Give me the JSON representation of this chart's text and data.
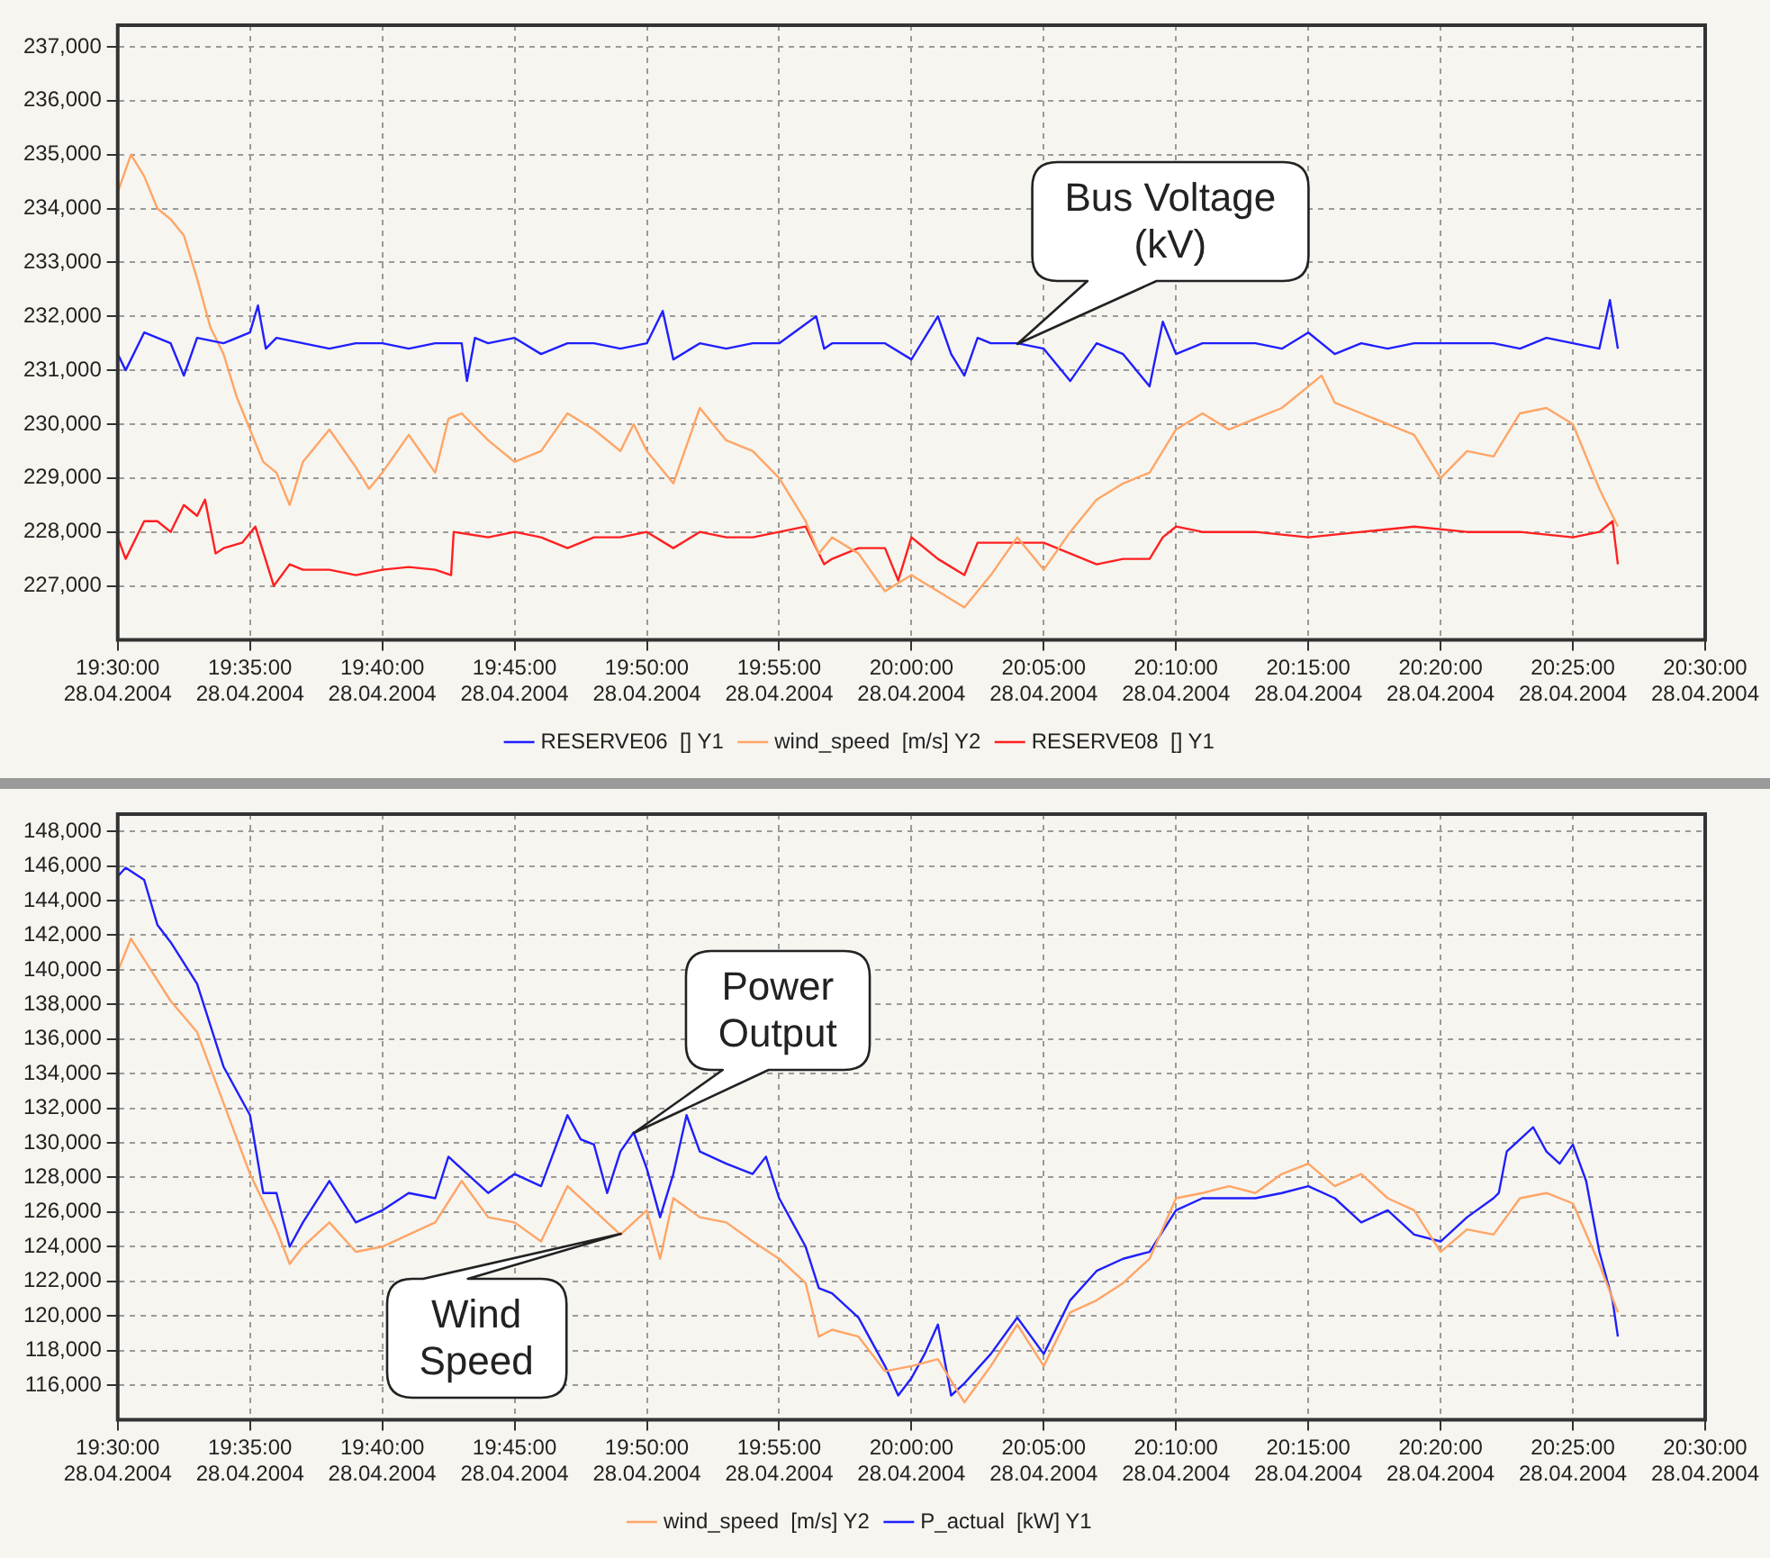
{
  "chart_data": [
    {
      "type": "line",
      "grid": true,
      "legend": "bottom",
      "marker": "none",
      "line_style": "solid",
      "xlim": [
        "2004-04-28T19:30",
        "2004-04-28T20:30"
      ],
      "xticks": [
        {
          "value": "2004-04-28T19:30",
          "label": "19:30:00\n28.04.2004"
        },
        {
          "value": "2004-04-28T19:35",
          "label": "19:35:00\n28.04.2004"
        },
        {
          "value": "2004-04-28T19:40",
          "label": "19:40:00\n28.04.2004"
        },
        {
          "value": "2004-04-28T19:45",
          "label": "19:45:00\n28.04.2004"
        },
        {
          "value": "2004-04-28T19:50",
          "label": "19:50:00\n28.04.2004"
        },
        {
          "value": "2004-04-28T19:55",
          "label": "19:55:00\n28.04.2004"
        },
        {
          "value": "2004-04-28T20:00",
          "label": "20:00:00\n28.04.2004"
        },
        {
          "value": "2004-04-28T20:05",
          "label": "20:05:00\n28.04.2004"
        },
        {
          "value": "2004-04-28T20:10",
          "label": "20:10:00\n28.04.2004"
        },
        {
          "value": "2004-04-28T20:15",
          "label": "20:15:00\n28.04.2004"
        },
        {
          "value": "2004-04-28T20:20",
          "label": "20:20:00\n28.04.2004"
        },
        {
          "value": "2004-04-28T20:25",
          "label": "20:25:00\n28.04.2004"
        },
        {
          "value": "2004-04-28T20:30",
          "label": "20:30:00\n28.04.2004"
        }
      ],
      "ylim": [
        226000,
        237400
      ],
      "yticks": [
        {
          "value": 227000,
          "label": "227,000"
        },
        {
          "value": 228000,
          "label": "228,000"
        },
        {
          "value": 229000,
          "label": "229,000"
        },
        {
          "value": 230000,
          "label": "230,000"
        },
        {
          "value": 231000,
          "label": "231,000"
        },
        {
          "value": 232000,
          "label": "232,000"
        },
        {
          "value": 233000,
          "label": "233,000"
        },
        {
          "value": 234000,
          "label": "234,000"
        },
        {
          "value": 235000,
          "label": "235,000"
        },
        {
          "value": 236000,
          "label": "236,000"
        },
        {
          "value": 237000,
          "label": "237,000"
        }
      ],
      "annotations": [
        {
          "text": "Bus Voltage\n(kV)",
          "x": "2004-04-28T20:04:00",
          "y": 231500
        }
      ],
      "series": [
        {
          "name": "RESERVE06  [] Y1",
          "color": "#1f1fff",
          "x": [
            "2004-04-28T19:30:00",
            "2004-04-28T19:30:18",
            "2004-04-28T19:31:00",
            "2004-04-28T19:32:00",
            "2004-04-28T19:32:30",
            "2004-04-28T19:33:00",
            "2004-04-28T19:34:00",
            "2004-04-28T19:35:00",
            "2004-04-28T19:35:18",
            "2004-04-28T19:35:36",
            "2004-04-28T19:36:00",
            "2004-04-28T19:37:00",
            "2004-04-28T19:38:00",
            "2004-04-28T19:39:00",
            "2004-04-28T19:40:00",
            "2004-04-28T19:41:00",
            "2004-04-28T19:42:00",
            "2004-04-28T19:43:00",
            "2004-04-28T19:43:12",
            "2004-04-28T19:43:30",
            "2004-04-28T19:44:00",
            "2004-04-28T19:45:00",
            "2004-04-28T19:46:00",
            "2004-04-28T19:47:00",
            "2004-04-28T19:48:00",
            "2004-04-28T19:49:00",
            "2004-04-28T19:50:00",
            "2004-04-28T19:50:36",
            "2004-04-28T19:51:00",
            "2004-04-28T19:52:00",
            "2004-04-28T19:53:00",
            "2004-04-28T19:54:00",
            "2004-04-28T19:55:00",
            "2004-04-28T19:56:24",
            "2004-04-28T19:56:42",
            "2004-04-28T19:57:00",
            "2004-04-28T19:58:00",
            "2004-04-28T19:59:00",
            "2004-04-28T20:00:00",
            "2004-04-28T20:01:00",
            "2004-04-28T20:01:30",
            "2004-04-28T20:02:00",
            "2004-04-28T20:02:30",
            "2004-04-28T20:03:00",
            "2004-04-28T20:04:00",
            "2004-04-28T20:05:00",
            "2004-04-28T20:06:00",
            "2004-04-28T20:07:00",
            "2004-04-28T20:08:00",
            "2004-04-28T20:09:00",
            "2004-04-28T20:09:30",
            "2004-04-28T20:10:00",
            "2004-04-28T20:11:00",
            "2004-04-28T20:12:00",
            "2004-04-28T20:13:00",
            "2004-04-28T20:14:00",
            "2004-04-28T20:15:00",
            "2004-04-28T20:16:00",
            "2004-04-28T20:17:00",
            "2004-04-28T20:18:00",
            "2004-04-28T20:19:00",
            "2004-04-28T20:20:00",
            "2004-04-28T20:21:00",
            "2004-04-28T20:22:00",
            "2004-04-28T20:23:00",
            "2004-04-28T20:24:00",
            "2004-04-28T20:25:00",
            "2004-04-28T20:26:00",
            "2004-04-28T20:26:24",
            "2004-04-28T20:26:42"
          ],
          "values": [
            231300,
            231000,
            231700,
            231500,
            230900,
            231600,
            231500,
            231700,
            232200,
            231400,
            231600,
            231500,
            231400,
            231500,
            231500,
            231400,
            231500,
            231500,
            230800,
            231600,
            231500,
            231600,
            231300,
            231500,
            231500,
            231400,
            231500,
            232100,
            231200,
            231500,
            231400,
            231500,
            231500,
            232000,
            231400,
            231500,
            231500,
            231500,
            231200,
            232000,
            231300,
            230900,
            231600,
            231500,
            231500,
            231400,
            230800,
            231500,
            231300,
            230700,
            231900,
            231300,
            231500,
            231500,
            231500,
            231400,
            231700,
            231300,
            231500,
            231400,
            231500,
            231500,
            231500,
            231500,
            231400,
            231600,
            231500,
            231400,
            232300,
            231400
          ]
        },
        {
          "name": "wind_speed  [m/s] Y2",
          "color": "#ffa566",
          "x": [
            "2004-04-28T19:30:00",
            "2004-04-28T19:30:30",
            "2004-04-28T19:31:00",
            "2004-04-28T19:31:30",
            "2004-04-28T19:32:00",
            "2004-04-28T19:32:30",
            "2004-04-28T19:33:00",
            "2004-04-28T19:33:30",
            "2004-04-28T19:34:00",
            "2004-04-28T19:34:30",
            "2004-04-28T19:35:00",
            "2004-04-28T19:35:30",
            "2004-04-28T19:36:00",
            "2004-04-28T19:36:30",
            "2004-04-28T19:37:00",
            "2004-04-28T19:38:00",
            "2004-04-28T19:39:00",
            "2004-04-28T19:39:30",
            "2004-04-28T19:40:00",
            "2004-04-28T19:41:00",
            "2004-04-28T19:42:00",
            "2004-04-28T19:42:30",
            "2004-04-28T19:43:00",
            "2004-04-28T19:44:00",
            "2004-04-28T19:45:00",
            "2004-04-28T19:46:00",
            "2004-04-28T19:47:00",
            "2004-04-28T19:48:00",
            "2004-04-28T19:49:00",
            "2004-04-28T19:49:30",
            "2004-04-28T19:50:00",
            "2004-04-28T19:51:00",
            "2004-04-28T19:52:00",
            "2004-04-28T19:53:00",
            "2004-04-28T19:54:00",
            "2004-04-28T19:55:00",
            "2004-04-28T19:56:00",
            "2004-04-28T19:56:30",
            "2004-04-28T19:57:00",
            "2004-04-28T19:58:00",
            "2004-04-28T19:59:00",
            "2004-04-28T20:00:00",
            "2004-04-28T20:01:00",
            "2004-04-28T20:02:00",
            "2004-04-28T20:03:00",
            "2004-04-28T20:04:00",
            "2004-04-28T20:05:00",
            "2004-04-28T20:06:00",
            "2004-04-28T20:07:00",
            "2004-04-28T20:08:00",
            "2004-04-28T20:09:00",
            "2004-04-28T20:10:00",
            "2004-04-28T20:11:00",
            "2004-04-28T20:12:00",
            "2004-04-28T20:13:00",
            "2004-04-28T20:14:00",
            "2004-04-28T20:15:00",
            "2004-04-28T20:15:30",
            "2004-04-28T20:16:00",
            "2004-04-28T20:17:00",
            "2004-04-28T20:18:00",
            "2004-04-28T20:19:00",
            "2004-04-28T20:20:00",
            "2004-04-28T20:21:00",
            "2004-04-28T20:22:00",
            "2004-04-28T20:23:00",
            "2004-04-28T20:24:00",
            "2004-04-28T20:25:00",
            "2004-04-28T20:26:00",
            "2004-04-28T20:26:42"
          ],
          "values": [
            234300,
            235000,
            234600,
            234000,
            233800,
            233500,
            232700,
            231800,
            231300,
            230500,
            229900,
            229300,
            229100,
            228500,
            229300,
            229900,
            229200,
            228800,
            229100,
            229800,
            229100,
            230100,
            230200,
            229700,
            229300,
            229500,
            230200,
            229900,
            229500,
            230000,
            229500,
            228900,
            230300,
            229700,
            229500,
            229000,
            228200,
            227600,
            227900,
            227600,
            226900,
            227200,
            226900,
            226600,
            227200,
            227900,
            227300,
            228000,
            228600,
            228900,
            229100,
            229900,
            230200,
            229900,
            230100,
            230300,
            230700,
            230900,
            230400,
            230200,
            230000,
            229800,
            229000,
            229500,
            229400,
            230200,
            230300,
            230000,
            228800,
            228100
          ]
        },
        {
          "name": "RESERVE08  [] Y1",
          "color": "#ff2020",
          "x": [
            "2004-04-28T19:30:00",
            "2004-04-28T19:30:18",
            "2004-04-28T19:31:00",
            "2004-04-28T19:31:30",
            "2004-04-28T19:32:00",
            "2004-04-28T19:32:30",
            "2004-04-28T19:33:00",
            "2004-04-28T19:33:18",
            "2004-04-28T19:33:42",
            "2004-04-28T19:34:00",
            "2004-04-28T19:34:42",
            "2004-04-28T19:35:12",
            "2004-04-28T19:35:54",
            "2004-04-28T19:36:30",
            "2004-04-28T19:37:00",
            "2004-04-28T19:38:00",
            "2004-04-28T19:39:00",
            "2004-04-28T19:40:00",
            "2004-04-28T19:41:00",
            "2004-04-28T19:42:00",
            "2004-04-28T19:42:36",
            "2004-04-28T19:42:42",
            "2004-04-28T19:44:00",
            "2004-04-28T19:45:00",
            "2004-04-28T19:46:00",
            "2004-04-28T19:47:00",
            "2004-04-28T19:48:00",
            "2004-04-28T19:49:00",
            "2004-04-28T19:50:00",
            "2004-04-28T19:51:00",
            "2004-04-28T19:52:00",
            "2004-04-28T19:53:00",
            "2004-04-28T19:54:00",
            "2004-04-28T19:55:00",
            "2004-04-28T19:56:00",
            "2004-04-28T19:56:42",
            "2004-04-28T19:57:00",
            "2004-04-28T19:58:00",
            "2004-04-28T19:59:00",
            "2004-04-28T19:59:30",
            "2004-04-28T20:00:00",
            "2004-04-28T20:01:00",
            "2004-04-28T20:02:00",
            "2004-04-28T20:02:30",
            "2004-04-28T20:03:00",
            "2004-04-28T20:04:00",
            "2004-04-28T20:05:00",
            "2004-04-28T20:06:00",
            "2004-04-28T20:07:00",
            "2004-04-28T20:08:00",
            "2004-04-28T20:09:00",
            "2004-04-28T20:09:30",
            "2004-04-28T20:10:00",
            "2004-04-28T20:11:00",
            "2004-04-28T20:13:00",
            "2004-04-28T20:15:00",
            "2004-04-28T20:17:00",
            "2004-04-28T20:19:00",
            "2004-04-28T20:21:00",
            "2004-04-28T20:23:00",
            "2004-04-28T20:25:00",
            "2004-04-28T20:26:00",
            "2004-04-28T20:26:30",
            "2004-04-28T20:26:42"
          ],
          "values": [
            227900,
            227500,
            228200,
            228200,
            228000,
            228500,
            228300,
            228600,
            227600,
            227700,
            227800,
            228100,
            227000,
            227400,
            227300,
            227300,
            227200,
            227300,
            227350,
            227300,
            227200,
            228000,
            227900,
            228000,
            227900,
            227700,
            227900,
            227900,
            228000,
            227700,
            228000,
            227900,
            227900,
            228000,
            228100,
            227400,
            227500,
            227700,
            227700,
            227100,
            227900,
            227500,
            227200,
            227800,
            227800,
            227800,
            227800,
            227600,
            227400,
            227500,
            227500,
            227900,
            228100,
            228000,
            228000,
            227900,
            228000,
            228100,
            228000,
            228000,
            227900,
            228000,
            228200,
            227400
          ]
        }
      ]
    },
    {
      "type": "line",
      "grid": true,
      "legend": "bottom",
      "marker": "none",
      "line_style": "solid",
      "xlim": [
        "2004-04-28T19:30",
        "2004-04-28T20:30"
      ],
      "xticks": [
        {
          "value": "2004-04-28T19:30",
          "label": "19:30:00\n28.04.2004"
        },
        {
          "value": "2004-04-28T19:35",
          "label": "19:35:00\n28.04.2004"
        },
        {
          "value": "2004-04-28T19:40",
          "label": "19:40:00\n28.04.2004"
        },
        {
          "value": "2004-04-28T19:45",
          "label": "19:45:00\n28.04.2004"
        },
        {
          "value": "2004-04-28T19:50",
          "label": "19:50:00\n28.04.2004"
        },
        {
          "value": "2004-04-28T19:55",
          "label": "19:55:00\n28.04.2004"
        },
        {
          "value": "2004-04-28T20:00",
          "label": "20:00:00\n28.04.2004"
        },
        {
          "value": "2004-04-28T20:05",
          "label": "20:05:00\n28.04.2004"
        },
        {
          "value": "2004-04-28T20:10",
          "label": "20:10:00\n28.04.2004"
        },
        {
          "value": "2004-04-28T20:15",
          "label": "20:15:00\n28.04.2004"
        },
        {
          "value": "2004-04-28T20:20",
          "label": "20:20:00\n28.04.2004"
        },
        {
          "value": "2004-04-28T20:25",
          "label": "20:25:00\n28.04.2004"
        },
        {
          "value": "2004-04-28T20:30",
          "label": "20:30:00\n28.04.2004"
        }
      ],
      "ylim": [
        114000,
        149000
      ],
      "yticks": [
        {
          "value": 116000,
          "label": "116,000"
        },
        {
          "value": 118000,
          "label": "118,000"
        },
        {
          "value": 120000,
          "label": "120,000"
        },
        {
          "value": 122000,
          "label": "122,000"
        },
        {
          "value": 124000,
          "label": "124,000"
        },
        {
          "value": 126000,
          "label": "126,000"
        },
        {
          "value": 128000,
          "label": "128,000"
        },
        {
          "value": 130000,
          "label": "130,000"
        },
        {
          "value": 132000,
          "label": "132,000"
        },
        {
          "value": 134000,
          "label": "134,000"
        },
        {
          "value": 136000,
          "label": "136,000"
        },
        {
          "value": 138000,
          "label": "138,000"
        },
        {
          "value": 140000,
          "label": "140,000"
        },
        {
          "value": 142000,
          "label": "142,000"
        },
        {
          "value": 144000,
          "label": "144,000"
        },
        {
          "value": 146000,
          "label": "146,000"
        },
        {
          "value": 148000,
          "label": "148,000"
        }
      ],
      "annotations": [
        {
          "text": "Power\nOutput",
          "x": "2004-04-28T19:49:30",
          "y": 130600
        },
        {
          "text": "Wind\nSpeed",
          "x": "2004-04-28T19:49:00",
          "y": 124700
        }
      ],
      "series": [
        {
          "name": "wind_speed  [m/s] Y2",
          "color": "#ffa566",
          "x": [
            "2004-04-28T19:30:00",
            "2004-04-28T19:30:30",
            "2004-04-28T19:31:00",
            "2004-04-28T19:32:00",
            "2004-04-28T19:33:00",
            "2004-04-28T19:34:00",
            "2004-04-28T19:35:00",
            "2004-04-28T19:36:00",
            "2004-04-28T19:36:30",
            "2004-04-28T19:37:00",
            "2004-04-28T19:38:00",
            "2004-04-28T19:39:00",
            "2004-04-28T19:40:00",
            "2004-04-28T19:41:00",
            "2004-04-28T19:42:00",
            "2004-04-28T19:43:00",
            "2004-04-28T19:44:00",
            "2004-04-28T19:45:00",
            "2004-04-28T19:46:00",
            "2004-04-28T19:47:00",
            "2004-04-28T19:48:00",
            "2004-04-28T19:49:00",
            "2004-04-28T19:50:00",
            "2004-04-28T19:50:30",
            "2004-04-28T19:51:00",
            "2004-04-28T19:52:00",
            "2004-04-28T19:53:00",
            "2004-04-28T19:54:00",
            "2004-04-28T19:55:00",
            "2004-04-28T19:56:00",
            "2004-04-28T19:56:30",
            "2004-04-28T19:57:00",
            "2004-04-28T19:58:00",
            "2004-04-28T19:59:00",
            "2004-04-28T20:00:00",
            "2004-04-28T20:01:00",
            "2004-04-28T20:02:00",
            "2004-04-28T20:03:00",
            "2004-04-28T20:04:00",
            "2004-04-28T20:05:00",
            "2004-04-28T20:06:00",
            "2004-04-28T20:07:00",
            "2004-04-28T20:08:00",
            "2004-04-28T20:09:00",
            "2004-04-28T20:10:00",
            "2004-04-28T20:11:00",
            "2004-04-28T20:12:00",
            "2004-04-28T20:13:00",
            "2004-04-28T20:14:00",
            "2004-04-28T20:15:00",
            "2004-04-28T20:16:00",
            "2004-04-28T20:17:00",
            "2004-04-28T20:18:00",
            "2004-04-28T20:19:00",
            "2004-04-28T20:20:00",
            "2004-04-28T20:21:00",
            "2004-04-28T20:22:00",
            "2004-04-28T20:23:00",
            "2004-04-28T20:24:00",
            "2004-04-28T20:25:00",
            "2004-04-28T20:26:00",
            "2004-04-28T20:26:42"
          ],
          "values": [
            139900,
            141800,
            140600,
            138200,
            136400,
            132300,
            128200,
            125000,
            123000,
            124000,
            125400,
            123700,
            124000,
            124700,
            125400,
            127800,
            125700,
            125400,
            124300,
            127500,
            126100,
            124700,
            126100,
            123300,
            126800,
            125700,
            125400,
            124300,
            123300,
            121900,
            118800,
            119200,
            118800,
            116800,
            117100,
            117500,
            115000,
            117100,
            119500,
            117100,
            120200,
            120900,
            121900,
            123300,
            126800,
            127100,
            127500,
            127100,
            128200,
            128800,
            127500,
            128200,
            126800,
            126100,
            123700,
            125000,
            124700,
            126800,
            127100,
            126500,
            123000,
            120200
          ]
        },
        {
          "name": "P_actual  [kW] Y1",
          "color": "#1f1fff",
          "x": [
            "2004-04-28T19:30:00",
            "2004-04-28T19:30:18",
            "2004-04-28T19:31:00",
            "2004-04-28T19:31:30",
            "2004-04-28T19:32:00",
            "2004-04-28T19:33:00",
            "2004-04-28T19:34:00",
            "2004-04-28T19:35:00",
            "2004-04-28T19:35:30",
            "2004-04-28T19:36:00",
            "2004-04-28T19:36:30",
            "2004-04-28T19:37:00",
            "2004-04-28T19:38:00",
            "2004-04-28T19:39:00",
            "2004-04-28T19:40:00",
            "2004-04-28T19:41:00",
            "2004-04-28T19:42:00",
            "2004-04-28T19:42:30",
            "2004-04-28T19:43:00",
            "2004-04-28T19:44:00",
            "2004-04-28T19:45:00",
            "2004-04-28T19:46:00",
            "2004-04-28T19:47:00",
            "2004-04-28T19:47:30",
            "2004-04-28T19:48:00",
            "2004-04-28T19:48:30",
            "2004-04-28T19:49:00",
            "2004-04-28T19:49:30",
            "2004-04-28T19:50:00",
            "2004-04-28T19:50:30",
            "2004-04-28T19:51:00",
            "2004-04-28T19:51:30",
            "2004-04-28T19:52:00",
            "2004-04-28T19:53:00",
            "2004-04-28T19:54:00",
            "2004-04-28T19:54:30",
            "2004-04-28T19:55:00",
            "2004-04-28T19:55:30",
            "2004-04-28T19:56:00",
            "2004-04-28T19:56:30",
            "2004-04-28T19:57:00",
            "2004-04-28T19:58:00",
            "2004-04-28T19:59:00",
            "2004-04-28T19:59:30",
            "2004-04-28T20:00:00",
            "2004-04-28T20:00:30",
            "2004-04-28T20:01:00",
            "2004-04-28T20:01:30",
            "2004-04-28T20:02:00",
            "2004-04-28T20:03:00",
            "2004-04-28T20:04:00",
            "2004-04-28T20:05:00",
            "2004-04-28T20:06:00",
            "2004-04-28T20:07:00",
            "2004-04-28T20:08:00",
            "2004-04-28T20:09:00",
            "2004-04-28T20:10:00",
            "2004-04-28T20:11:00",
            "2004-04-28T20:12:00",
            "2004-04-28T20:13:00",
            "2004-04-28T20:14:00",
            "2004-04-28T20:15:00",
            "2004-04-28T20:16:00",
            "2004-04-28T20:17:00",
            "2004-04-28T20:18:00",
            "2004-04-28T20:19:00",
            "2004-04-28T20:20:00",
            "2004-04-28T20:21:00",
            "2004-04-28T20:22:00",
            "2004-04-28T20:22:12",
            "2004-04-28T20:22:30",
            "2004-04-28T20:23:00",
            "2004-04-28T20:23:30",
            "2004-04-28T20:24:00",
            "2004-04-28T20:24:30",
            "2004-04-28T20:25:00",
            "2004-04-28T20:25:30",
            "2004-04-28T20:26:00",
            "2004-04-28T20:26:30",
            "2004-04-28T20:26:42"
          ],
          "values": [
            145400,
            145900,
            145200,
            142600,
            141600,
            139200,
            134400,
            131600,
            127100,
            127100,
            124000,
            125400,
            127800,
            125400,
            126100,
            127100,
            126800,
            129200,
            128500,
            127100,
            128200,
            127500,
            131600,
            130200,
            129900,
            127100,
            129500,
            130600,
            128500,
            125700,
            128200,
            131600,
            129500,
            128800,
            128200,
            129200,
            126800,
            125400,
            124000,
            121600,
            121300,
            119900,
            117100,
            115400,
            116400,
            117800,
            119500,
            115400,
            116100,
            117800,
            119900,
            117800,
            120900,
            122600,
            123300,
            123700,
            126100,
            126800,
            126800,
            126800,
            127100,
            127500,
            126800,
            125400,
            126100,
            124700,
            124300,
            125700,
            126800,
            127100,
            129500,
            130200,
            130900,
            129500,
            128800,
            129900,
            127800,
            123700,
            120900,
            118800
          ]
        }
      ]
    }
  ]
}
